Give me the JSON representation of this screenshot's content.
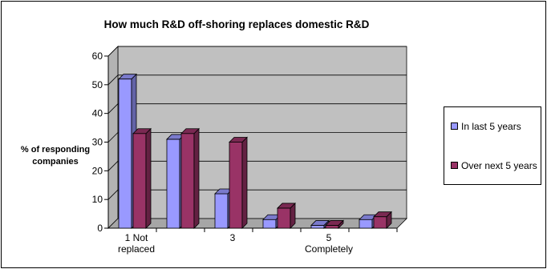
{
  "chart_data": {
    "type": "bar",
    "title": "How much R&D off-shoring replaces domestic R&D",
    "ylabel": [
      "% of responding",
      "companies"
    ],
    "xlabel": "",
    "ylim": [
      0,
      60
    ],
    "yticks": [
      0,
      10,
      20,
      30,
      40,
      50,
      60
    ],
    "grid": true,
    "legend_position": "right",
    "categories": [
      [
        "1 Not",
        "replaced"
      ],
      [
        ""
      ],
      [
        "3"
      ],
      [
        ""
      ],
      [
        "5",
        "Completely"
      ],
      [
        ""
      ]
    ],
    "series": [
      {
        "name": "In last 5 years",
        "values": [
          52,
          31,
          12,
          3,
          1,
          3
        ],
        "color": "#9999FF"
      },
      {
        "name": "Over next 5 years",
        "values": [
          33,
          33,
          30,
          7,
          1,
          4
        ],
        "color": "#993366"
      }
    ]
  }
}
